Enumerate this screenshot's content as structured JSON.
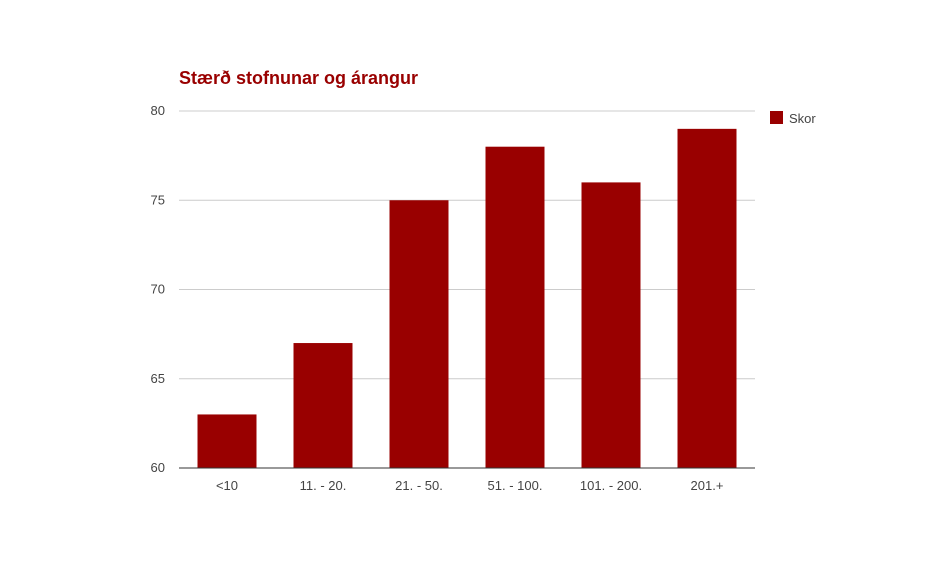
{
  "colors": {
    "bar": "#990000",
    "title": "#990000",
    "grid": "#cccccc",
    "axis": "#333333",
    "text": "#444444"
  },
  "chart_data": {
    "type": "bar",
    "title": "Stærð stofnunar og árangur",
    "xlabel": "",
    "ylabel": "",
    "categories": [
      "<10",
      "11. - 20.",
      "21. - 50.",
      "51. - 100.",
      "101. - 200.",
      "201.+"
    ],
    "series": [
      {
        "name": "Skor",
        "values": [
          63,
          67,
          75,
          78,
          76,
          79
        ]
      }
    ],
    "ylim": [
      60,
      80
    ],
    "yticks": [
      "60",
      "65",
      "70",
      "75",
      "80"
    ],
    "grid": true,
    "legend": "right"
  }
}
